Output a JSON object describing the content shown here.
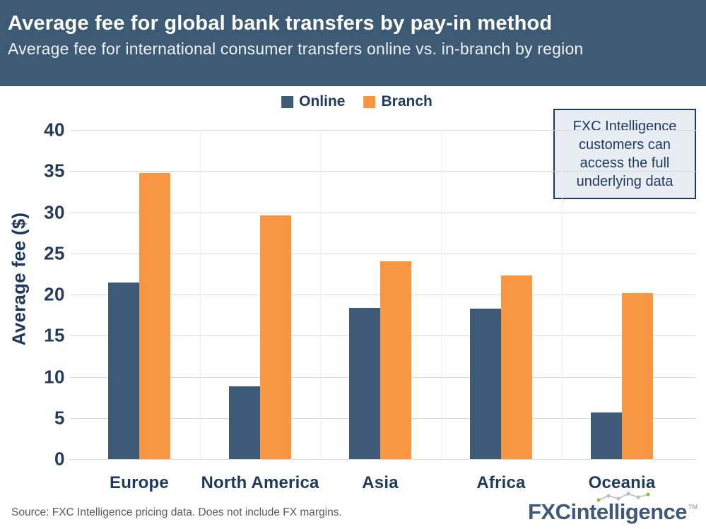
{
  "header": {
    "title": "Average fee for global bank transfers by pay-in method",
    "subtitle": "Average fee for international consumer transfers online vs. in-branch by region"
  },
  "annotation": {
    "text": "FXC Intelligence customers can access the full underlying data"
  },
  "chart_data": {
    "type": "bar",
    "title": "Average fee for global bank transfers by pay-in method",
    "subtitle": "Average fee for international consumer transfers online vs. in-branch by region",
    "categories": [
      "Europe",
      "North America",
      "Asia",
      "Africa",
      "Oceania"
    ],
    "series": [
      {
        "name": "Online",
        "color": "#3c5a76",
        "values": [
          21.5,
          8.8,
          18.4,
          18.3,
          5.7
        ]
      },
      {
        "name": "Branch",
        "color": "#f89642",
        "values": [
          34.8,
          29.6,
          24.0,
          22.3,
          20.2
        ]
      }
    ],
    "xlabel": "",
    "ylabel": "Average fee ($)",
    "ylim": [
      0,
      40
    ],
    "yticks": [
      0,
      5,
      10,
      15,
      20,
      25,
      30,
      35,
      40
    ],
    "grid": true,
    "legend_position": "top"
  },
  "footer": {
    "source": "Source: FXC Intelligence pricing data. Does not include FX margins.",
    "logo": {
      "part1": "FXC",
      "part2": "intelligence",
      "tm": "TM"
    }
  },
  "colors": {
    "header_bg": "#3d5a74",
    "online": "#3c5a76",
    "branch": "#f89642",
    "text_navy": "#1d3a5e",
    "annotation_bg": "#e8ecf3",
    "gridline": "#d8d8d8",
    "source_gray": "#595959",
    "logo_blue": "#3d5a78",
    "logo_green": "#8cc63e"
  }
}
